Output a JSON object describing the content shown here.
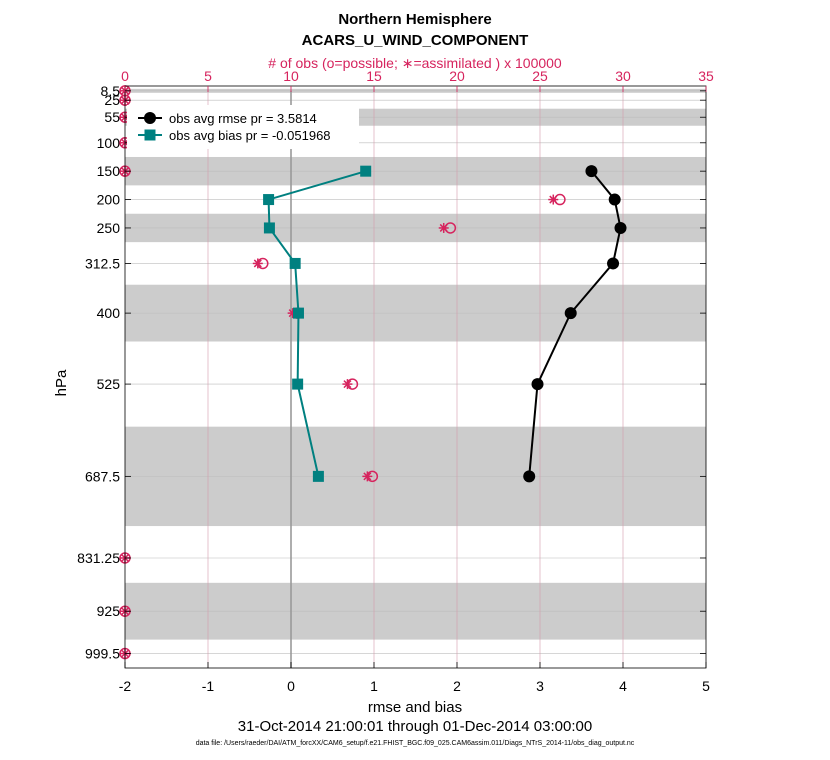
{
  "chart_data": {
    "type": "line",
    "title": "Northern Hemisphere",
    "subtitle": "ACARS_U_WIND_COMPONENT",
    "top_axis_label": "# of obs (o=possible; ∗=assimilated ) x 100000",
    "xlabel": "rmse and bias",
    "ylabel": "hPa",
    "date_range": "31-Oct-2014 21:00:01 through 01-Dec-2014 03:00:00",
    "footnote": "data file: /Users/raeder/DAI/ATM_forcXX/CAM6_setup/f.e21.FHIST_BGC.f09_025.CAM6assim.011/Diags_NTrS_2014-11/obs_diag_output.nc",
    "xlim": [
      -2,
      5
    ],
    "x_ticks": [
      -2,
      -1,
      0,
      1,
      2,
      3,
      4,
      5
    ],
    "top_xlim": [
      0,
      35
    ],
    "top_ticks": [
      0,
      5,
      10,
      15,
      20,
      25,
      30,
      35
    ],
    "ylim": [
      1025,
      0
    ],
    "levels": [
      8.5,
      25,
      55,
      100,
      150,
      200,
      250,
      312.5,
      400,
      525,
      687.5,
      831.25,
      925,
      999.5
    ],
    "level_labels": [
      "8.5",
      "25",
      "55",
      "100",
      "150",
      "200",
      "250",
      "312.5",
      "400",
      "525",
      "687.5",
      "831.25",
      "925",
      "999.5"
    ],
    "bands": [
      [
        5,
        12
      ],
      [
        40,
        70
      ],
      [
        125,
        175
      ],
      [
        225,
        275
      ],
      [
        350,
        450
      ],
      [
        600,
        775
      ],
      [
        875,
        975
      ]
    ],
    "series": [
      {
        "name": "obs avg rmse",
        "legend": "obs avg rmse pr = 3.5814",
        "color": "#000000",
        "marker": "circle",
        "points": [
          [
            3.62,
            150
          ],
          [
            3.9,
            200
          ],
          [
            3.97,
            250
          ],
          [
            3.88,
            312.5
          ],
          [
            3.37,
            400
          ],
          [
            2.97,
            525
          ],
          [
            2.87,
            687.5
          ]
        ]
      },
      {
        "name": "obs avg bias",
        "legend": "obs avg bias pr = -0.051968",
        "color": "#008080",
        "marker": "square",
        "points": [
          [
            0.9,
            150
          ],
          [
            -0.27,
            200
          ],
          [
            -0.26,
            250
          ],
          [
            0.05,
            312.5
          ],
          [
            0.09,
            400
          ],
          [
            0.08,
            525
          ],
          [
            0.33,
            687.5
          ]
        ]
      }
    ],
    "obs_counts": {
      "color": "#d6245e",
      "levels": [
        8.5,
        25,
        55,
        100,
        150,
        200,
        250,
        312.5,
        400,
        525,
        687.5,
        831.25,
        925,
        999.5
      ],
      "possible": [
        0,
        0,
        0,
        0,
        0,
        26.2,
        19.6,
        8.3,
        10.4,
        13.7,
        14.9,
        0,
        0,
        0
      ],
      "assimilated": [
        0,
        0,
        0,
        0,
        0,
        25.8,
        19.2,
        8.0,
        10.1,
        13.4,
        14.6,
        0,
        0,
        0
      ]
    }
  }
}
